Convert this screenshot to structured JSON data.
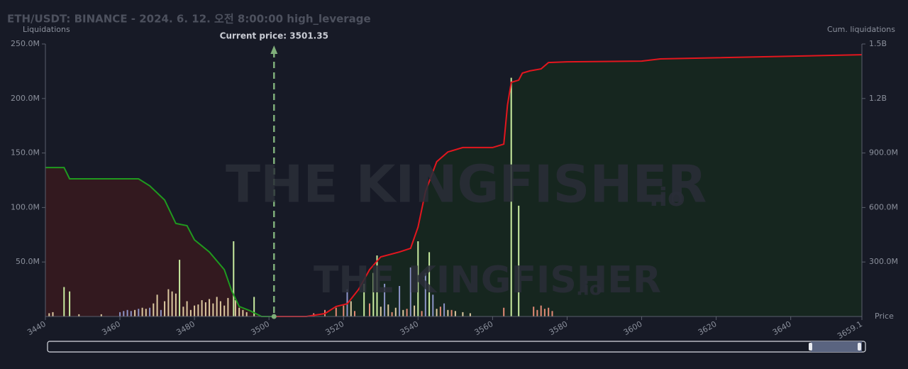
{
  "chart_data": {
    "type": "bar",
    "title": "ETH/USDT: BINANCE - 2024. 6. 12. 오전 8:00:00 high_leverage",
    "y_label": "Liquidations",
    "y2_label": "Cum. liquidations",
    "x_label": "Price",
    "annotation": {
      "text": "Current price: 3501.35",
      "x": 3501.35
    },
    "watermark": "THE KINGFISHER",
    "watermark_suffix": ".io",
    "xlim": [
      3440,
      3659.1
    ],
    "xticks": [
      3440,
      3460,
      3480,
      3500,
      3520,
      3540,
      3560,
      3580,
      3600,
      3620,
      3640,
      3659.1
    ],
    "ylim": [
      0,
      250000000
    ],
    "yticks": [
      {
        "value": 50000000,
        "label": "50.0M"
      },
      {
        "value": 100000000,
        "label": "100.0M"
      },
      {
        "value": 150000000,
        "label": "150.0M"
      },
      {
        "value": 200000000,
        "label": "200.0M"
      },
      {
        "value": 250000000,
        "label": "250.0M"
      }
    ],
    "y2lim": [
      0,
      1500000000
    ],
    "y2ticks": [
      {
        "value": 300000000,
        "label": "300.0M"
      },
      {
        "value": 600000000,
        "label": "600.0M"
      },
      {
        "value": 900000000,
        "label": "900.0M"
      },
      {
        "value": 1200000000,
        "label": "1.2B"
      },
      {
        "value": 1500000000,
        "label": "1.5B"
      }
    ],
    "series": [
      {
        "type": "area",
        "axis": "y2",
        "color": "#1f9a1f",
        "fill": "#33191f",
        "x": [
          3440,
          3445,
          3446.5,
          3460,
          3465,
          3468,
          3472,
          3475,
          3478,
          3480,
          3484,
          3488,
          3490,
          3492,
          3495,
          3498,
          3501.35
        ],
        "values": [
          820000000,
          820000000,
          758000000,
          758000000,
          758000000,
          719000000,
          641000000,
          512000000,
          500000000,
          422000000,
          355000000,
          258000000,
          141000000,
          55000000,
          31000000,
          0,
          0
        ]
      },
      {
        "type": "area",
        "axis": "y2",
        "color": "#e3161e",
        "fill": "#16261f",
        "x": [
          3501.35,
          3510,
          3515,
          3518,
          3521,
          3524,
          3527,
          3530,
          3535,
          3538,
          3540,
          3542,
          3545,
          3548,
          3552,
          3560,
          3563,
          3564,
          3565,
          3567,
          3568,
          3570,
          3573,
          3575,
          3580,
          3600,
          3605,
          3659.1
        ],
        "values": [
          0,
          0,
          16000000,
          55000000,
          70000000,
          148000000,
          258000000,
          328000000,
          355000000,
          375000000,
          492000000,
          688000000,
          852000000,
          906000000,
          930000000,
          930000000,
          949000000,
          1164000000,
          1289000000,
          1301000000,
          1340000000,
          1352000000,
          1363000000,
          1398000000,
          1402000000,
          1406000000,
          1418000000,
          1441000000
        ]
      },
      {
        "type": "bar",
        "color": "#c9eca0",
        "x": [
          3445,
          3446.5,
          3476,
          3490.5,
          3496,
          3525.5,
          3528,
          3529,
          3540,
          3543,
          3565,
          3567
        ],
        "values": [
          27000000,
          23000000,
          52000000,
          69000000,
          18000000,
          30000000,
          40000000,
          56000000,
          69000000,
          59000000,
          219000000,
          101600000
        ]
      },
      {
        "type": "bar",
        "color": "#dcc9a0",
        "x": [
          3441,
          3442,
          3449,
          3455,
          3464,
          3466,
          3467,
          3469,
          3470,
          3472,
          3473,
          3474,
          3475,
          3477,
          3478,
          3479,
          3480,
          3481,
          3482,
          3483,
          3484,
          3485,
          3486,
          3487,
          3488,
          3489,
          3491,
          3492,
          3493,
          3494,
          3522,
          3530,
          3532,
          3534,
          3536,
          3539,
          3545,
          3548,
          3550,
          3552,
          3554
        ],
        "values": [
          3000000,
          4000000,
          2000000,
          2000000,
          6000000,
          8000000,
          7000000,
          12000000,
          20000000,
          14000000,
          25000000,
          23000000,
          21000000,
          9000000,
          14000000,
          6000000,
          10000000,
          11000000,
          15000000,
          13000000,
          16000000,
          12000000,
          18000000,
          14000000,
          10000000,
          17000000,
          15000000,
          8000000,
          6000000,
          4000000,
          14000000,
          9000000,
          11000000,
          8000000,
          6000000,
          10000000,
          7000000,
          6000000,
          5000000,
          4000000,
          3000000
        ]
      },
      {
        "type": "bar",
        "color": "#e38a76",
        "x": [
          3512,
          3515,
          3518,
          3520,
          3523,
          3527,
          3533,
          3537,
          3541,
          3546,
          3549,
          3563,
          3571,
          3572,
          3573,
          3574,
          3575,
          3576
        ],
        "values": [
          3000000,
          6000000,
          8000000,
          10000000,
          5000000,
          12000000,
          4000000,
          7000000,
          5000000,
          9000000,
          6000000,
          8000000,
          9000000,
          6000000,
          10000000,
          7000000,
          8000000,
          5000000
        ]
      },
      {
        "type": "bar",
        "color": "#8c94c8",
        "x": [
          3460,
          3461,
          3462,
          3463,
          3465,
          3468,
          3471,
          3521,
          3531,
          3535,
          3538,
          3542,
          3544,
          3547
        ],
        "values": [
          4000000,
          5000000,
          6000000,
          5000000,
          7000000,
          8000000,
          6000000,
          25000000,
          30000000,
          28000000,
          45000000,
          40000000,
          20000000,
          12000000
        ]
      }
    ]
  }
}
